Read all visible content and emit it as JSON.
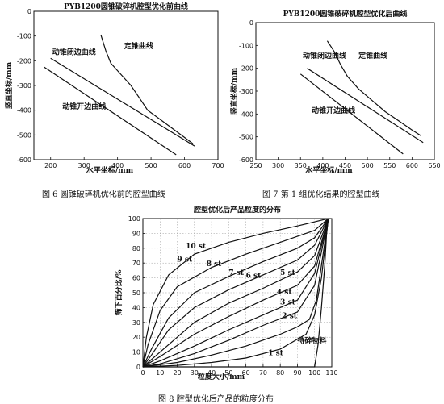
{
  "captions": {
    "fig6": "图 6   圆锥破碎机优化前的腔型曲线",
    "fig7": "图 7   第 1 组优化结果的腔型曲线",
    "fig8": "图 8   腔型优化后产品的粒度分布"
  },
  "chart_data": [
    {
      "id": "fig6",
      "type": "line",
      "title": "PYB1200圆锥破碎机腔型优化前曲线",
      "xlabel": "水平坐标/mm",
      "ylabel": "竖直坐标/mm",
      "xlim": [
        150,
        700
      ],
      "ylim": [
        -600,
        0
      ],
      "xticks": [
        200,
        300,
        400,
        500,
        600,
        700
      ],
      "yticks": [
        0,
        -100,
        -200,
        -300,
        -400,
        -500,
        -600
      ],
      "grid": false,
      "series": [
        {
          "name": "定锥曲线",
          "points": [
            [
              350,
              -95
            ],
            [
              365,
              -160
            ],
            [
              380,
              -210
            ],
            [
              400,
              -240
            ],
            [
              440,
              -300
            ],
            [
              470,
              -360
            ],
            [
              490,
              -400
            ],
            [
              520,
              -430
            ],
            [
              560,
              -470
            ],
            [
              600,
              -510
            ],
            [
              625,
              -535
            ]
          ]
        },
        {
          "name": "动锥闭边曲线",
          "points": [
            [
              200,
              -190
            ],
            [
              630,
              -545
            ]
          ]
        },
        {
          "name": "动锥开边曲线",
          "points": [
            [
              180,
              -225
            ],
            [
              575,
              -580
            ]
          ]
        }
      ],
      "annotations": [
        {
          "text": "定锥曲线",
          "x": 420,
          "y": -150
        },
        {
          "text": "动锥闭边曲线",
          "x": 205,
          "y": -175
        },
        {
          "text": "动锥开边曲线",
          "x": 235,
          "y": -395
        }
      ]
    },
    {
      "id": "fig7",
      "type": "line",
      "title": "PYB1200圆锥破碎机腔型优化后曲线",
      "xlabel": "水平坐标/mm",
      "ylabel": "竖直坐标/mm",
      "xlim": [
        250,
        650
      ],
      "ylim": [
        -600,
        0
      ],
      "xticks": [
        250,
        300,
        350,
        400,
        450,
        500,
        550,
        600,
        650
      ],
      "yticks": [
        0,
        -100,
        -200,
        -300,
        -400,
        -500,
        -600
      ],
      "grid": false,
      "series": [
        {
          "name": "定锥曲线",
          "points": [
            [
              410,
              -80
            ],
            [
              425,
              -125
            ],
            [
              440,
              -185
            ],
            [
              455,
              -235
            ],
            [
              480,
              -290
            ],
            [
              510,
              -340
            ],
            [
              540,
              -390
            ],
            [
              570,
              -430
            ],
            [
              600,
              -470
            ],
            [
              620,
              -495
            ]
          ]
        },
        {
          "name": "动锥闭边曲线",
          "points": [
            [
              365,
              -200
            ],
            [
              625,
              -525
            ]
          ]
        },
        {
          "name": "动锥开边曲线",
          "points": [
            [
              350,
              -225
            ],
            [
              580,
              -575
            ]
          ]
        }
      ],
      "annotations": [
        {
          "text": "定锥曲线",
          "x": 480,
          "y": -155
        },
        {
          "text": "动锥闭边曲线",
          "x": 355,
          "y": -155
        },
        {
          "text": "动锥开边曲线",
          "x": 375,
          "y": -395
        }
      ]
    },
    {
      "id": "fig8",
      "type": "line",
      "title": "腔型优化后产品粒度的分布",
      "xlabel": "粒度大小/mm",
      "ylabel": "筛下百分比/%",
      "xlim": [
        0,
        110
      ],
      "ylim": [
        0,
        100
      ],
      "xticks": [
        0,
        10,
        20,
        30,
        40,
        50,
        60,
        70,
        80,
        90,
        100,
        110
      ],
      "yticks": [
        0,
        10,
        20,
        30,
        40,
        50,
        60,
        70,
        80,
        90,
        100
      ],
      "grid": true,
      "series": [
        {
          "name": "待碎物料",
          "points": [
            [
              0,
              0
            ],
            [
              100,
              0
            ],
            [
              102,
              15
            ],
            [
              104,
              40
            ],
            [
              106,
              70
            ],
            [
              107,
              90
            ],
            [
              108,
              100
            ]
          ]
        },
        {
          "name": "1 st",
          "points": [
            [
              0,
              0
            ],
            [
              20,
              1
            ],
            [
              40,
              3
            ],
            [
              60,
              6
            ],
            [
              80,
              12
            ],
            [
              95,
              22
            ],
            [
              100,
              35
            ],
            [
              104,
              60
            ],
            [
              108,
              100
            ]
          ]
        },
        {
          "name": "2 st",
          "points": [
            [
              0,
              0
            ],
            [
              20,
              3
            ],
            [
              40,
              8
            ],
            [
              60,
              14
            ],
            [
              80,
              22
            ],
            [
              90,
              27
            ],
            [
              97,
              32
            ],
            [
              101,
              45
            ],
            [
              108,
              100
            ]
          ]
        },
        {
          "name": "3 st",
          "points": [
            [
              0,
              0
            ],
            [
              10,
              2
            ],
            [
              30,
              9
            ],
            [
              50,
              18
            ],
            [
              70,
              28
            ],
            [
              90,
              37
            ],
            [
              100,
              55
            ],
            [
              108,
              100
            ]
          ]
        },
        {
          "name": "4 st",
          "points": [
            [
              0,
              0
            ],
            [
              10,
              4
            ],
            [
              30,
              14
            ],
            [
              50,
              25
            ],
            [
              70,
              35
            ],
            [
              90,
              45
            ],
            [
              100,
              63
            ],
            [
              108,
              100
            ]
          ]
        },
        {
          "name": "5 st",
          "points": [
            [
              0,
              0
            ],
            [
              10,
              7
            ],
            [
              30,
              22
            ],
            [
              50,
              34
            ],
            [
              70,
              45
            ],
            [
              90,
              55
            ],
            [
              100,
              68
            ],
            [
              108,
              100
            ]
          ]
        },
        {
          "name": "6 st",
          "points": [
            [
              0,
              0
            ],
            [
              10,
              10
            ],
            [
              30,
              30
            ],
            [
              50,
              43
            ],
            [
              70,
              53
            ],
            [
              90,
              64
            ],
            [
              100,
              75
            ],
            [
              108,
              100
            ]
          ]
        },
        {
          "name": "7 st",
          "points": [
            [
              0,
              0
            ],
            [
              5,
              8
            ],
            [
              15,
              25
            ],
            [
              30,
              40
            ],
            [
              50,
              52
            ],
            [
              70,
              62
            ],
            [
              90,
              72
            ],
            [
              100,
              82
            ],
            [
              108,
              100
            ]
          ]
        },
        {
          "name": "8 st",
          "points": [
            [
              0,
              0
            ],
            [
              5,
              12
            ],
            [
              15,
              33
            ],
            [
              30,
              50
            ],
            [
              50,
              61
            ],
            [
              70,
              71
            ],
            [
              90,
              80
            ],
            [
              100,
              87
            ],
            [
              108,
              100
            ]
          ]
        },
        {
          "name": "9 st",
          "points": [
            [
              0,
              0
            ],
            [
              3,
              15
            ],
            [
              10,
              38
            ],
            [
              20,
              54
            ],
            [
              40,
              67
            ],
            [
              60,
              76
            ],
            [
              80,
              84
            ],
            [
              100,
              92
            ],
            [
              108,
              100
            ]
          ]
        },
        {
          "name": "10 st",
          "points": [
            [
              0,
              0
            ],
            [
              2,
              20
            ],
            [
              6,
              42
            ],
            [
              15,
              62
            ],
            [
              30,
              76
            ],
            [
              50,
              84
            ],
            [
              70,
              90
            ],
            [
              90,
              95
            ],
            [
              108,
              100
            ]
          ]
        }
      ],
      "annotations": [
        {
          "text": "10 st",
          "x": 25,
          "y": 80
        },
        {
          "text": "9 st",
          "x": 20,
          "y": 71
        },
        {
          "text": "8 st",
          "x": 37,
          "y": 68
        },
        {
          "text": "7 st",
          "x": 50,
          "y": 62
        },
        {
          "text": "6 st",
          "x": 60,
          "y": 60
        },
        {
          "text": "5 st",
          "x": 80,
          "y": 62
        },
        {
          "text": "4 st",
          "x": 78,
          "y": 49
        },
        {
          "text": "3 st",
          "x": 80,
          "y": 42
        },
        {
          "text": "2 st",
          "x": 81,
          "y": 33
        },
        {
          "text": "1 st",
          "x": 73,
          "y": 8
        },
        {
          "text": "待碎物料",
          "x": 90,
          "y": 16
        }
      ]
    }
  ]
}
